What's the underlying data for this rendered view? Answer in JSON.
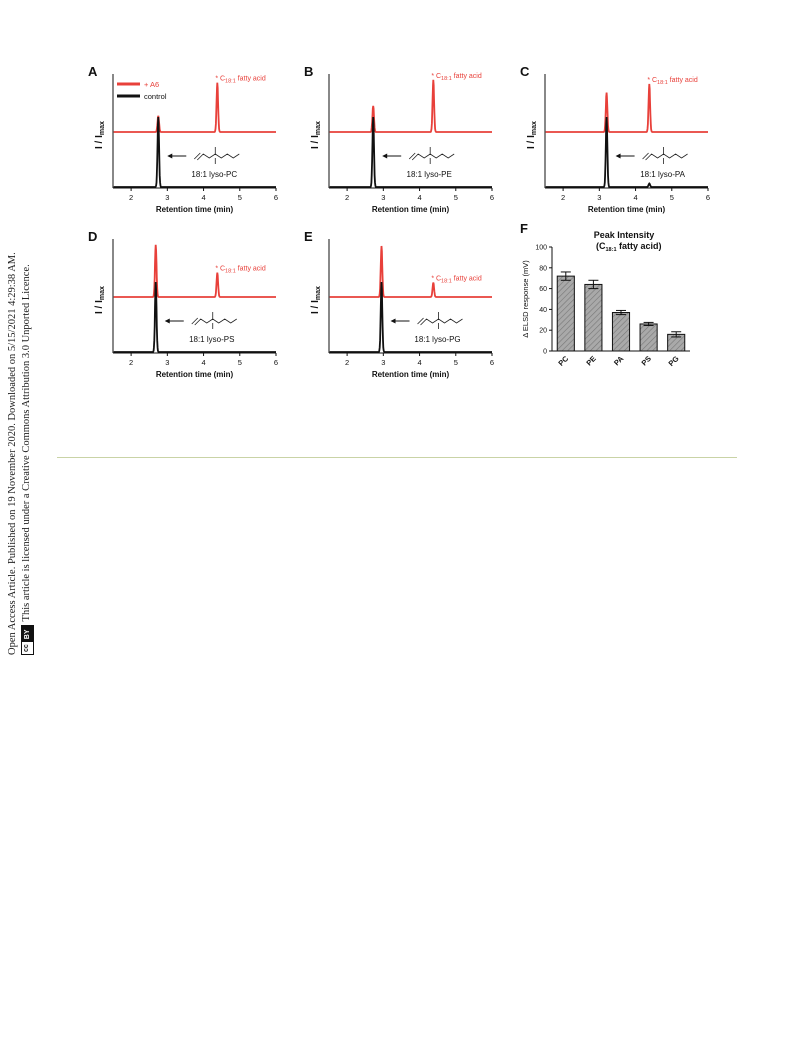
{
  "sidebar": {
    "line1": "Open Access Article. Published on 19 November 2020. Downloaded on 5/15/2021 4:29:38 AM.",
    "line2": "This article is licensed under a Creative Commons Attribution 3.0 Unported Licence.",
    "badge_cc": "cc",
    "badge_by": "BY"
  },
  "colors": {
    "treated": "#e8403a",
    "control": "#111111",
    "bar_fill": "#a9a9a9"
  },
  "legend": {
    "treated": "+ A6",
    "control": "control"
  },
  "chart_data": [
    {
      "panel": "A",
      "type": "line",
      "xlabel": "Retention time (min)",
      "ylabel": "I / I",
      "ylabel_sub": "max",
      "xlim": [
        1.5,
        6
      ],
      "xticks": [
        2,
        3,
        4,
        5,
        6
      ],
      "annotation": {
        "prefix": "* C",
        "sub": "18:1",
        "suffix": " fatty acid"
      },
      "series": [
        {
          "name": "+ A6",
          "peaks": [
            {
              "x": 2.75,
              "height": 0.28
            },
            {
              "x": 4.38,
              "height": 0.85
            }
          ]
        },
        {
          "name": "control",
          "peaks": [
            {
              "x": 2.75,
              "height": 1.0
            }
          ]
        }
      ],
      "molecule_label": "18:1 lyso-PC"
    },
    {
      "panel": "B",
      "type": "line",
      "xlabel": "Retention time (min)",
      "ylabel": "I / I",
      "ylabel_sub": "max",
      "xlim": [
        1.5,
        6
      ],
      "xticks": [
        2,
        3,
        4,
        5,
        6
      ],
      "annotation": {
        "prefix": "* C",
        "sub": "18:1",
        "suffix": " fatty acid"
      },
      "series": [
        {
          "name": "+ A6",
          "peaks": [
            {
              "x": 2.72,
              "height": 0.45
            },
            {
              "x": 4.38,
              "height": 0.9
            }
          ]
        },
        {
          "name": "control",
          "peaks": [
            {
              "x": 2.72,
              "height": 1.0
            }
          ]
        }
      ],
      "molecule_label": "18:1 lyso-PE"
    },
    {
      "panel": "C",
      "type": "line",
      "xlabel": "Retention time (min)",
      "ylabel": "I / I",
      "ylabel_sub": "max",
      "xlim": [
        1.5,
        6
      ],
      "xticks": [
        2,
        3,
        4,
        5,
        6
      ],
      "annotation": {
        "prefix": "* C",
        "sub": "18:1",
        "suffix": " fatty acid"
      },
      "series": [
        {
          "name": "+ A6",
          "peaks": [
            {
              "x": 3.2,
              "height": 0.68
            },
            {
              "x": 4.38,
              "height": 0.83
            }
          ]
        },
        {
          "name": "control",
          "peaks": [
            {
              "x": 3.2,
              "height": 1.0
            },
            {
              "x": 4.38,
              "height": 0.05
            }
          ]
        }
      ],
      "molecule_label": "18:1 lyso-PA"
    },
    {
      "panel": "D",
      "type": "line",
      "xlabel": "Retention time (min)",
      "ylabel": "I / I",
      "ylabel_sub": "max",
      "xlim": [
        1.5,
        6
      ],
      "xticks": [
        2,
        3,
        4,
        5,
        6
      ],
      "annotation": {
        "prefix": "* C",
        "sub": "18:1",
        "suffix": " fatty acid"
      },
      "series": [
        {
          "name": "+ A6",
          "peaks": [
            {
              "x": 2.68,
              "height": 0.9
            },
            {
              "x": 4.38,
              "height": 0.42
            }
          ]
        },
        {
          "name": "control",
          "peaks": [
            {
              "x": 2.68,
              "height": 1.0
            }
          ]
        }
      ],
      "molecule_label": "18:1 lyso-PS"
    },
    {
      "panel": "E",
      "type": "line",
      "xlabel": "Retention time (min)",
      "ylabel": "I / I",
      "ylabel_sub": "max",
      "xlim": [
        1.5,
        6
      ],
      "xticks": [
        2,
        3,
        4,
        5,
        6
      ],
      "annotation": {
        "prefix": "* C",
        "sub": "18:1",
        "suffix": " fatty acid"
      },
      "series": [
        {
          "name": "+ A6",
          "peaks": [
            {
              "x": 2.95,
              "height": 0.88
            },
            {
              "x": 4.38,
              "height": 0.25
            }
          ]
        },
        {
          "name": "control",
          "peaks": [
            {
              "x": 2.95,
              "height": 1.0
            }
          ]
        }
      ],
      "molecule_label": "18:1 lyso-PG"
    },
    {
      "panel": "F",
      "type": "bar",
      "title": "Peak Intensity",
      "subtitle": {
        "prefix": "(C",
        "sub": "18:1",
        "suffix": " fatty acid)"
      },
      "ylabel": "Δ ELSD response (mV)",
      "ylim": [
        0,
        100
      ],
      "yticks": [
        0,
        20,
        40,
        60,
        80,
        100
      ],
      "categories": [
        "PC",
        "PE",
        "PA",
        "PS",
        "PG"
      ],
      "values": [
        72,
        64,
        37,
        26,
        16
      ],
      "errors": [
        4,
        4,
        2,
        1.5,
        2.5
      ]
    }
  ]
}
